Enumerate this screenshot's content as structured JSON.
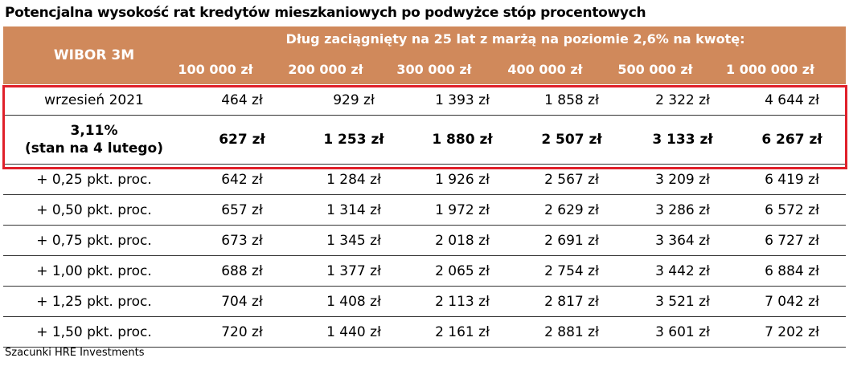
{
  "chart_data": {
    "type": "table",
    "title": "Potencjalna wysokość rat kredytów mieszkaniowych po podwyżce stóp procentowych",
    "row_header": "WIBOR 3M",
    "column_group_header": "Dług zaciągnięty na 25 lat z marżą na poziomie 2,6% na kwotę:",
    "columns": [
      "100 000 zł",
      "200 000 zł",
      "300 000 zł",
      "400 000 zł",
      "500 000 zł",
      "1 000 000 zł"
    ],
    "rows": [
      {
        "label": "wrzesień 2021",
        "label2": "",
        "bold": false,
        "values": [
          "464 zł",
          "929 zł",
          "1 393 zł",
          "1 858 zł",
          "2 322 zł",
          "4 644 zł"
        ]
      },
      {
        "label": "3,11%",
        "label2": "(stan na 4 lutego)",
        "bold": true,
        "values": [
          "627 zł",
          "1 253 zł",
          "1 880 zł",
          "2 507 zł",
          "3 133 zł",
          "6 267 zł"
        ]
      },
      {
        "label": "+ 0,25 pkt. proc.",
        "label2": "",
        "bold": false,
        "values": [
          "642 zł",
          "1 284 zł",
          "1 926 zł",
          "2 567 zł",
          "3 209 zł",
          "6 419 zł"
        ]
      },
      {
        "label": "+ 0,50 pkt. proc.",
        "label2": "",
        "bold": false,
        "values": [
          "657 zł",
          "1 314 zł",
          "1 972 zł",
          "2 629 zł",
          "3 286 zł",
          "6 572 zł"
        ]
      },
      {
        "label": "+ 0,75 pkt. proc.",
        "label2": "",
        "bold": false,
        "values": [
          "673 zł",
          "1 345 zł",
          "2 018 zł",
          "2 691 zł",
          "3 364 zł",
          "6 727 zł"
        ]
      },
      {
        "label": "+ 1,00 pkt. proc.",
        "label2": "",
        "bold": false,
        "values": [
          "688 zł",
          "1 377 zł",
          "2 065 zł",
          "2 754 zł",
          "3 442 zł",
          "6 884 zł"
        ]
      },
      {
        "label": "+ 1,25 pkt. proc.",
        "label2": "",
        "bold": false,
        "values": [
          "704 zł",
          "1 408 zł",
          "2 113 zł",
          "2 817 zł",
          "3 521 zł",
          "7 042 zł"
        ]
      },
      {
        "label": "+ 1,50 pkt. proc.",
        "label2": "",
        "bold": false,
        "values": [
          "720 zł",
          "1 440 zł",
          "2 161 zł",
          "2 881 zł",
          "3 601 zł",
          "7 202 zł"
        ]
      }
    ],
    "source": "Szacunki HRE Investments",
    "colors": {
      "header_bg": "#D0895B",
      "header_text": "#FFFFFF",
      "highlight_border": "#E0202A"
    }
  }
}
